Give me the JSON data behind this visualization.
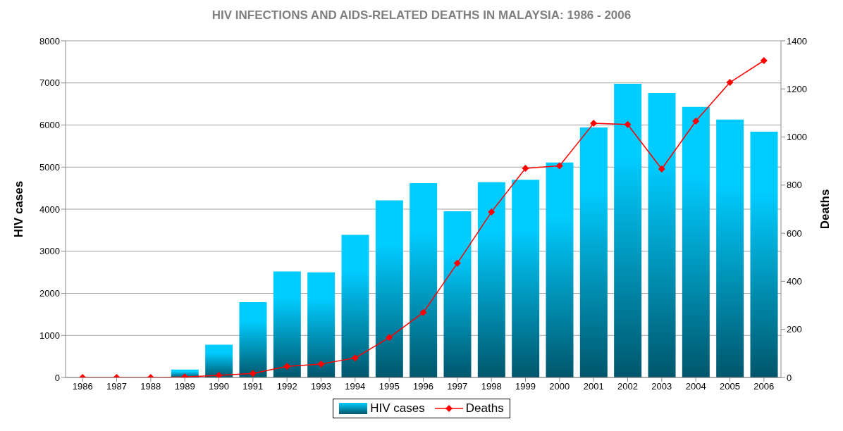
{
  "chart_data": {
    "type": "bar",
    "title": "HIV INFECTIONS AND AIDS-RELATED DEATHS IN MALAYSIA: 1986 - 2006",
    "ylabel": "HIV cases",
    "y2label": "Deaths",
    "categories": [
      "1986",
      "1987",
      "1988",
      "1989",
      "1990",
      "1991",
      "1992",
      "1993",
      "1994",
      "1995",
      "1996",
      "1997",
      "1998",
      "1999",
      "2000",
      "2001",
      "2002",
      "2003",
      "2004",
      "2005",
      "2006"
    ],
    "series": [
      {
        "name": "HIV cases",
        "color": "#00ccff",
        "values": [
          0,
          0,
          0,
          190,
          780,
          1790,
          2520,
          2500,
          3390,
          4210,
          4620,
          3950,
          4640,
          4700,
          5110,
          5940,
          6980,
          6760,
          6430,
          6130,
          5840
        ]
      },
      {
        "name": "Deaths",
        "type": "line",
        "axis": "y2",
        "color": "#ff0000",
        "values": [
          0,
          0,
          0,
          2,
          9,
          17,
          46,
          56,
          81,
          166,
          270,
          475,
          688,
          870,
          880,
          1057,
          1052,
          867,
          1066,
          1227,
          1318
        ]
      }
    ],
    "ylim": [
      0,
      8000
    ],
    "yticks": [
      0,
      1000,
      2000,
      3000,
      4000,
      5000,
      6000,
      7000,
      8000
    ],
    "y2lim": [
      0,
      1400
    ],
    "y2ticks": [
      0,
      200,
      400,
      600,
      800,
      1000,
      1200,
      1400
    ],
    "grid": "y",
    "legend": "bottom",
    "marker": "diamond",
    "line_style": "solid"
  }
}
